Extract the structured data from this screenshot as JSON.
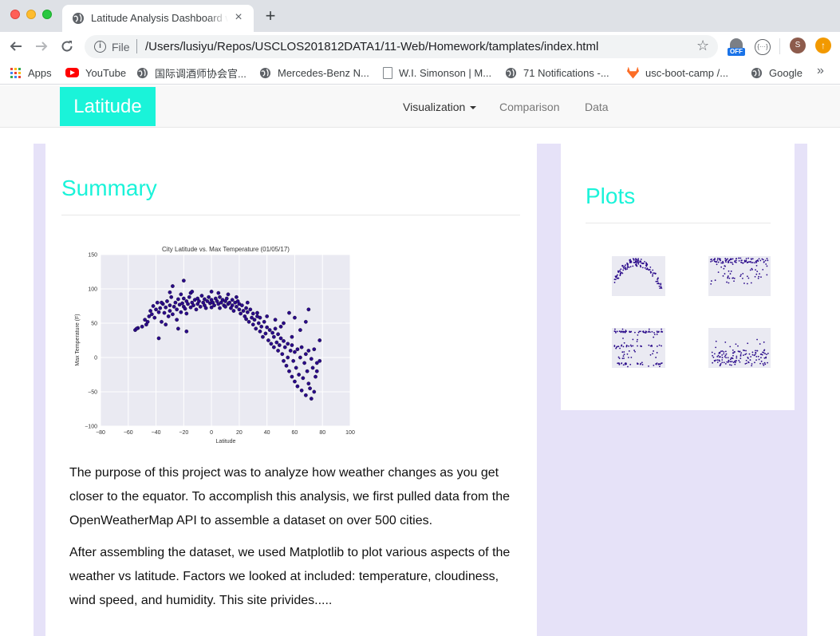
{
  "browser": {
    "tab_title": "Latitude Analysis Dashboard w",
    "tab_close": "×",
    "new_tab": "+",
    "scheme": "File",
    "url": "/Users/lusiyu/Repos/USCLOS201812DATA1/11-Web/Homework/tamplates/index.html",
    "extension_badge": "OFF",
    "extension_code": "{···}",
    "profile_initial": "S",
    "update_symbol": "↑",
    "bookmarks": [
      {
        "label": "Apps",
        "icon": "apps-grid-icon"
      },
      {
        "label": "YouTube",
        "icon": "youtube-icon"
      },
      {
        "label": "国际调酒师协会官...",
        "icon": "globe-icon"
      },
      {
        "label": "Mercedes-Benz N...",
        "icon": "globe-icon"
      },
      {
        "label": "W.I. Simonson | M...",
        "icon": "document-icon"
      },
      {
        "label": "71 Notifications -...",
        "icon": "globe-icon"
      },
      {
        "label": "usc-boot-camp /...",
        "icon": "gitlab-icon"
      },
      {
        "label": "Google",
        "icon": "globe-icon"
      }
    ],
    "bookmarks_more": "»"
  },
  "site": {
    "brand": "Latitude",
    "nav": {
      "visualization": "Visualization",
      "comparison": "Comparison",
      "data": "Data"
    },
    "summary": {
      "heading": "Summary",
      "paragraphs": [
        "The purpose of this project was to analyze how weather changes as you get closer to the equator. To accomplish this analysis, we first pulled data from the OpenWeatherMap API to assemble a dataset on over 500 cities.",
        "After assembling the dataset, we used Matplotlib to plot various aspects of the weather vs latitude. Factors we looked at included: temperature, cloudiness, wind speed, and humidity. This site privides....."
      ]
    },
    "plots": {
      "heading": "Plots"
    }
  },
  "chart_data": {
    "type": "scatter",
    "title": "City Latitude vs. Max Temperature (01/05/17)",
    "xlabel": "Latitude",
    "ylabel": "Max Temperature (F)",
    "xlim": [
      -80,
      100
    ],
    "ylim": [
      -100,
      150
    ],
    "xticks": [
      "−80",
      "−60",
      "−40",
      "−20",
      "0",
      "20",
      "40",
      "60",
      "80",
      "100"
    ],
    "yticks": [
      "150",
      "100",
      "50",
      "0",
      "−50",
      "−100"
    ],
    "grid": true,
    "point_color": "#2a0a8a",
    "points": [
      [
        -55,
        40
      ],
      [
        -53,
        43
      ],
      [
        -50,
        45
      ],
      [
        -48,
        55
      ],
      [
        -47,
        48
      ],
      [
        -45,
        60
      ],
      [
        -44,
        68
      ],
      [
        -43,
        63
      ],
      [
        -42,
        75
      ],
      [
        -41,
        58
      ],
      [
        -40,
        70
      ],
      [
        -39,
        80
      ],
      [
        -38,
        66
      ],
      [
        -37,
        72
      ],
      [
        -36,
        52
      ],
      [
        -35,
        78
      ],
      [
        -34,
        65
      ],
      [
        -33,
        73
      ],
      [
        -32,
        82
      ],
      [
        -31,
        60
      ],
      [
        -30,
        76
      ],
      [
        -30,
        68
      ],
      [
        -29,
        88
      ],
      [
        -28,
        63
      ],
      [
        -27,
        74
      ],
      [
        -26,
        80
      ],
      [
        -25,
        70
      ],
      [
        -25,
        55
      ],
      [
        -24,
        85
      ],
      [
        -23,
        77
      ],
      [
        -22,
        66
      ],
      [
        -22,
        92
      ],
      [
        -21,
        79
      ],
      [
        -20,
        74
      ],
      [
        -20,
        86
      ],
      [
        -19,
        71
      ],
      [
        -18,
        82
      ],
      [
        -18,
        64
      ],
      [
        -17,
        78
      ],
      [
        -16,
        88
      ],
      [
        -15,
        73
      ],
      [
        -15,
        94
      ],
      [
        -14,
        80
      ],
      [
        -13,
        76
      ],
      [
        -12,
        84
      ],
      [
        -11,
        70
      ],
      [
        -10,
        86
      ],
      [
        -10,
        78
      ],
      [
        -9,
        82
      ],
      [
        -8,
        74
      ],
      [
        -7,
        90
      ],
      [
        -6,
        80
      ],
      [
        -5,
        76
      ],
      [
        -5,
        85
      ],
      [
        -4,
        72
      ],
      [
        -3,
        82
      ],
      [
        -2,
        88
      ],
      [
        -1,
        79
      ],
      [
        0,
        84
      ],
      [
        0,
        73
      ],
      [
        1,
        80
      ],
      [
        2,
        76
      ],
      [
        3,
        86
      ],
      [
        4,
        82
      ],
      [
        5,
        78
      ],
      [
        6,
        88
      ],
      [
        6,
        72
      ],
      [
        7,
        80
      ],
      [
        8,
        84
      ],
      [
        9,
        76
      ],
      [
        10,
        82
      ],
      [
        10,
        74
      ],
      [
        11,
        86
      ],
      [
        12,
        78
      ],
      [
        13,
        80
      ],
      [
        14,
        72
      ],
      [
        15,
        84
      ],
      [
        15,
        76
      ],
      [
        16,
        68
      ],
      [
        17,
        80
      ],
      [
        18,
        74
      ],
      [
        19,
        82
      ],
      [
        20,
        70
      ],
      [
        20,
        78
      ],
      [
        21,
        64
      ],
      [
        22,
        76
      ],
      [
        23,
        68
      ],
      [
        24,
        60
      ],
      [
        25,
        72
      ],
      [
        25,
        56
      ],
      [
        26,
        66
      ],
      [
        27,
        52
      ],
      [
        28,
        70
      ],
      [
        29,
        58
      ],
      [
        30,
        64
      ],
      [
        30,
        48
      ],
      [
        31,
        55
      ],
      [
        32,
        42
      ],
      [
        33,
        60
      ],
      [
        34,
        50
      ],
      [
        35,
        38
      ],
      [
        35,
        58
      ],
      [
        36,
        45
      ],
      [
        37,
        30
      ],
      [
        38,
        52
      ],
      [
        39,
        35
      ],
      [
        40,
        44
      ],
      [
        41,
        25
      ],
      [
        42,
        40
      ],
      [
        43,
        20
      ],
      [
        44,
        36
      ],
      [
        45,
        15
      ],
      [
        45,
        30
      ],
      [
        46,
        42
      ],
      [
        47,
        22
      ],
      [
        48,
        10
      ],
      [
        48,
        34
      ],
      [
        49,
        18
      ],
      [
        50,
        28
      ],
      [
        51,
        5
      ],
      [
        52,
        24
      ],
      [
        52,
        -5
      ],
      [
        53,
        15
      ],
      [
        54,
        -12
      ],
      [
        55,
        20
      ],
      [
        55,
        0
      ],
      [
        56,
        -20
      ],
      [
        57,
        10
      ],
      [
        58,
        -28
      ],
      [
        58,
        18
      ],
      [
        59,
        -5
      ],
      [
        60,
        -35
      ],
      [
        60,
        8
      ],
      [
        61,
        -15
      ],
      [
        62,
        -42
      ],
      [
        62,
        12
      ],
      [
        63,
        -25
      ],
      [
        64,
        0
      ],
      [
        65,
        -48
      ],
      [
        65,
        15
      ],
      [
        66,
        -30
      ],
      [
        67,
        -8
      ],
      [
        68,
        -55
      ],
      [
        68,
        5
      ],
      [
        69,
        -20
      ],
      [
        70,
        -38
      ],
      [
        70,
        10
      ],
      [
        71,
        -45
      ],
      [
        72,
        -60
      ],
      [
        72,
        -2
      ],
      [
        73,
        -15
      ],
      [
        74,
        -50
      ],
      [
        75,
        -28
      ],
      [
        76,
        -8
      ],
      [
        78,
        -5
      ],
      [
        78,
        25
      ],
      [
        -54,
        42
      ],
      [
        -46,
        52
      ],
      [
        -36,
        80
      ],
      [
        -28,
        104
      ],
      [
        -20,
        112
      ],
      [
        -14,
        96
      ],
      [
        -30,
        95
      ],
      [
        0,
        96
      ],
      [
        5,
        94
      ],
      [
        12,
        92
      ],
      [
        18,
        88
      ],
      [
        -24,
        42
      ],
      [
        -33,
        48
      ],
      [
        -18,
        38
      ],
      [
        -38,
        28
      ],
      [
        26,
        80
      ],
      [
        33,
        65
      ],
      [
        40,
        60
      ],
      [
        46,
        55
      ],
      [
        52,
        50
      ],
      [
        56,
        65
      ],
      [
        60,
        58
      ],
      [
        64,
        40
      ],
      [
        68,
        52
      ],
      [
        70,
        70
      ],
      [
        74,
        12
      ],
      [
        76,
        -20
      ],
      [
        58,
        30
      ],
      [
        50,
        45
      ]
    ]
  }
}
